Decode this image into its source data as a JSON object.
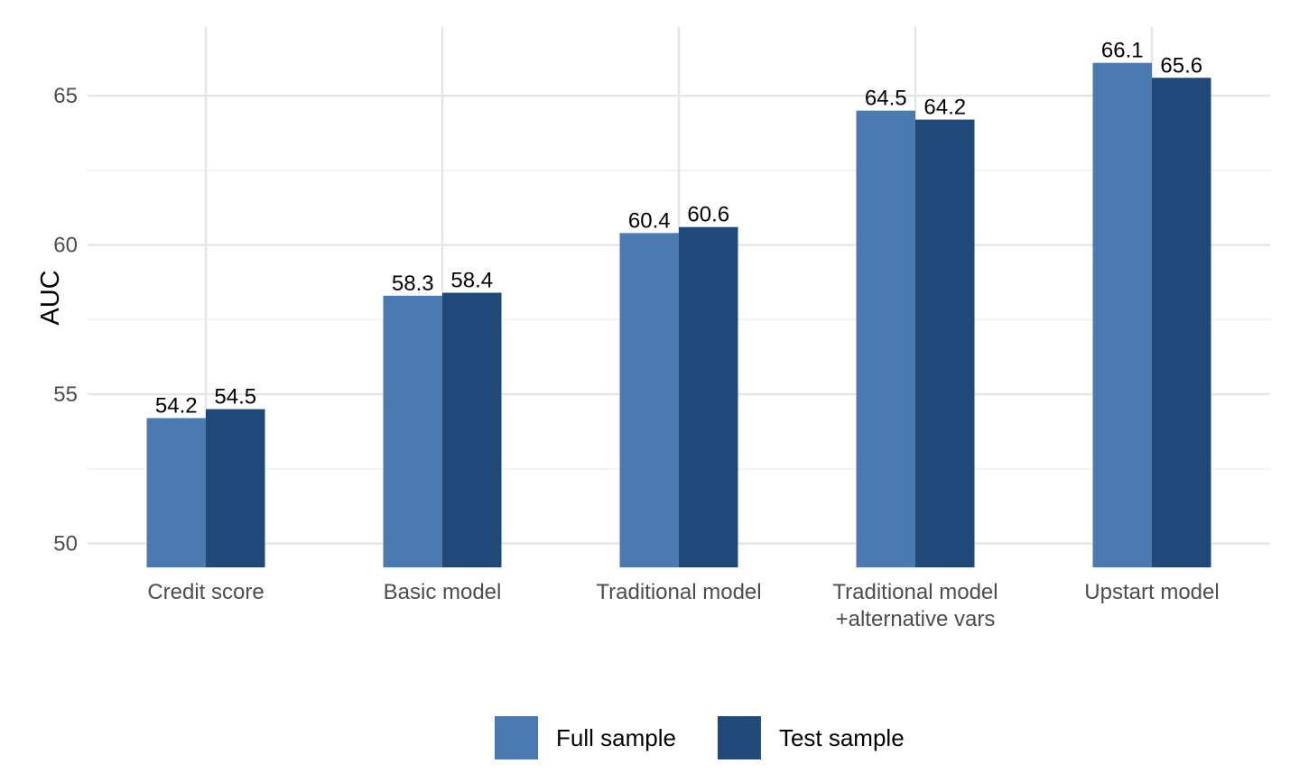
{
  "chart_data": {
    "type": "bar",
    "title": "",
    "xlabel": "",
    "ylabel": "AUC",
    "categories": [
      [
        "Credit score"
      ],
      [
        "Basic model"
      ],
      [
        "Traditional model"
      ],
      [
        "Traditional model",
        "+alternative vars"
      ],
      [
        "Upstart model"
      ]
    ],
    "series": [
      {
        "name": "Full sample",
        "color": "#4a7ab0",
        "values": [
          54.2,
          58.3,
          60.4,
          64.5,
          66.1
        ],
        "labels": [
          "54.2",
          "58.3",
          "60.4",
          "64.5",
          "66.1"
        ]
      },
      {
        "name": "Test sample",
        "color": "#204878",
        "values": [
          54.5,
          58.4,
          60.6,
          64.2,
          65.6
        ],
        "labels": [
          "54.5",
          "58.4",
          "60.6",
          "64.2",
          "65.6"
        ]
      }
    ],
    "ylim": [
      49.2,
      67.3
    ],
    "yticks": [
      50,
      55,
      60,
      65
    ],
    "ytick_labels": [
      "50",
      "55",
      "60",
      "65"
    ],
    "grid": true,
    "legend": "bottom"
  }
}
